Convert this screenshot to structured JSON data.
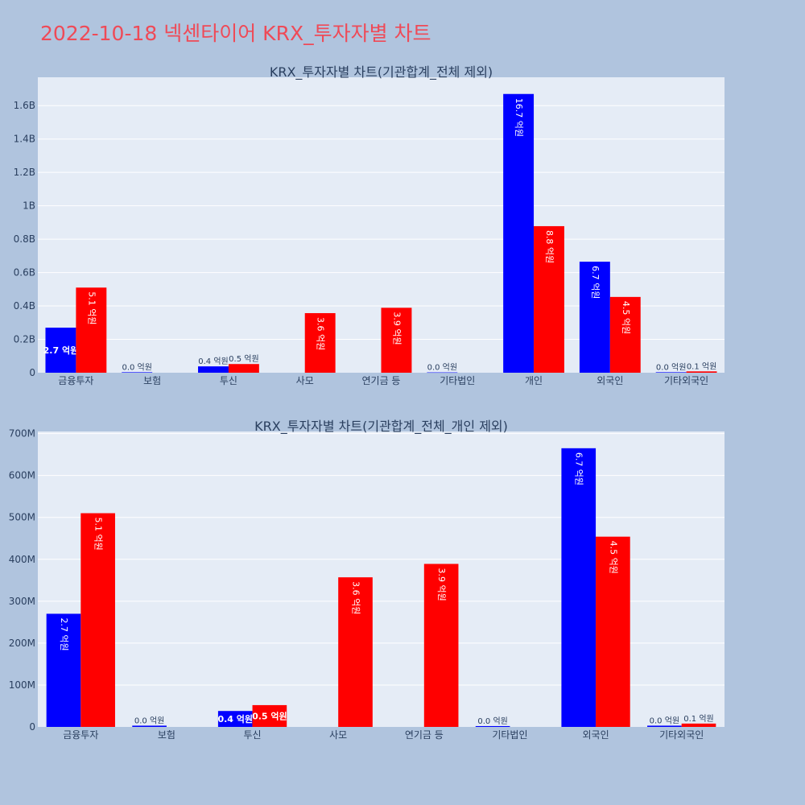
{
  "page": {
    "title": "2022-10-18 넥센타이어 KRX_투자자별 차트"
  },
  "colors": {
    "buy": "#0000ff",
    "sell": "#ff0000",
    "plot_bg": "#e5ecf6",
    "page_bg": "#b0c4de",
    "grid": "#ffffff",
    "text": "#2a3f5f",
    "title": "#ef4a57"
  },
  "chart_data": [
    {
      "type": "bar",
      "title": "KRX_투자자별 차트(기관합계_전체 제외)",
      "categories": [
        "금융투자",
        "보험",
        "투신",
        "사모",
        "연기금 등",
        "기타법인",
        "개인",
        "외국인",
        "기타외국인"
      ],
      "series": [
        {
          "color": "#0000ff",
          "values": [
            270000000,
            3000000,
            38000000,
            null,
            null,
            2000000,
            1670000000,
            665000000,
            3000000
          ],
          "labels": [
            "2.7 억원",
            "0.0 억원",
            "0.4 억원",
            null,
            null,
            "0.0 억원",
            "16.7 억원",
            "6.7 억원",
            "0.0 억원"
          ]
        },
        {
          "color": "#ff0000",
          "values": [
            510000000,
            null,
            52000000,
            357000000,
            389000000,
            null,
            878000000,
            454000000,
            8000000
          ],
          "labels": [
            "5.1 억원",
            null,
            "0.5 억원",
            "3.6 억원",
            "3.9 억원",
            null,
            "8.8 억원",
            "4.5 억원",
            "0.1 억원"
          ]
        }
      ],
      "ylim": [
        0,
        1770000000
      ],
      "yticks": [
        0,
        200000000,
        400000000,
        600000000,
        800000000,
        1000000000,
        1200000000,
        1400000000,
        1600000000
      ],
      "ytick_labels": [
        "0",
        "0.2B",
        "0.4B",
        "0.6B",
        "0.8B",
        "1B",
        "1.2B",
        "1.4B",
        "1.6B"
      ],
      "inside_threshold": 150000000
    },
    {
      "type": "bar",
      "title": "KRX_투자자별 차트(기관합계_전체_개인 제외)",
      "categories": [
        "금융투자",
        "보험",
        "투신",
        "사모",
        "연기금 등",
        "기타법인",
        "외국인",
        "기타외국인"
      ],
      "series": [
        {
          "color": "#0000ff",
          "values": [
            270000000,
            3000000,
            38000000,
            null,
            null,
            2000000,
            665000000,
            3000000
          ],
          "labels": [
            "2.7 억원",
            "0.0 억원",
            "0.4 억원",
            null,
            null,
            "0.0 억원",
            "6.7 억원",
            "0.0 억원"
          ]
        },
        {
          "color": "#ff0000",
          "values": [
            510000000,
            null,
            52000000,
            357000000,
            389000000,
            null,
            454000000,
            8000000
          ],
          "labels": [
            "5.1 억원",
            null,
            "0.5 억원",
            "3.6 억원",
            "3.9 억원",
            null,
            "4.5 억원",
            "0.1 억원"
          ]
        }
      ],
      "ylim": [
        0,
        705000000
      ],
      "yticks": [
        0,
        100000000,
        200000000,
        300000000,
        400000000,
        500000000,
        600000000,
        700000000
      ],
      "ytick_labels": [
        "0",
        "100M",
        "200M",
        "300M",
        "400M",
        "500M",
        "600M",
        "700M"
      ],
      "inside_threshold": 30000000
    }
  ]
}
